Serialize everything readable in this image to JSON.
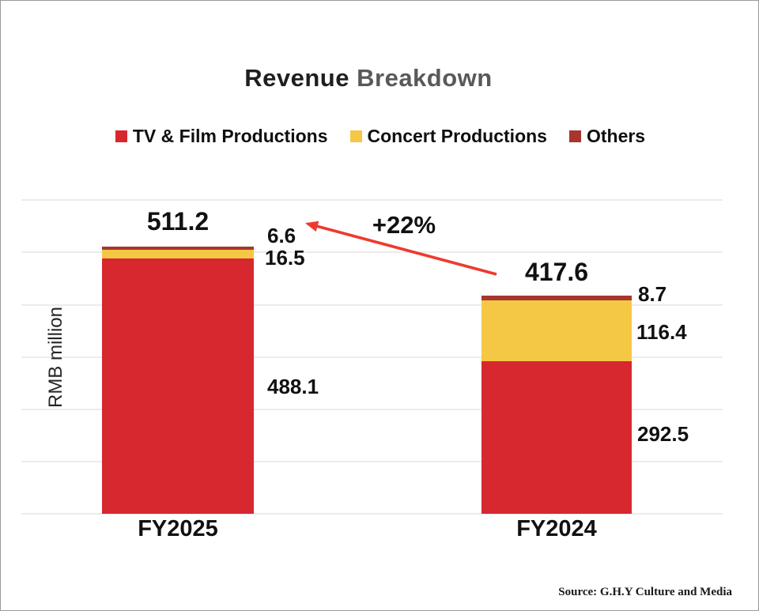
{
  "title": {
    "part1": "Revenue",
    "part2": "Breakdown"
  },
  "chart_data": {
    "type": "bar",
    "stacked": true,
    "title": "Revenue Breakdown",
    "categories": [
      "FY2025",
      "FY2024"
    ],
    "series": [
      {
        "name": "TV & Film Productions",
        "color": "#D7282F",
        "values": [
          488.1,
          292.5
        ]
      },
      {
        "name": "Concert Productions",
        "color": "#F4C844",
        "values": [
          16.5,
          116.4
        ]
      },
      {
        "name": "Others",
        "color": "#A6362E",
        "values": [
          6.6,
          8.7
        ]
      }
    ],
    "totals": [
      511.2,
      417.6
    ],
    "xlabel": "",
    "ylabel": "RMB million",
    "ylim": [
      0,
      600
    ],
    "gridline_step": 100,
    "grid": "horizontal, unlabeled ticks",
    "legend_position": "top",
    "annotation": {
      "text": "+22%",
      "arrow_color": "#EE3A2D",
      "from": "FY2024 total",
      "to": "FY2025 total"
    }
  },
  "source": "Source: G.H.Y Culture and Media"
}
